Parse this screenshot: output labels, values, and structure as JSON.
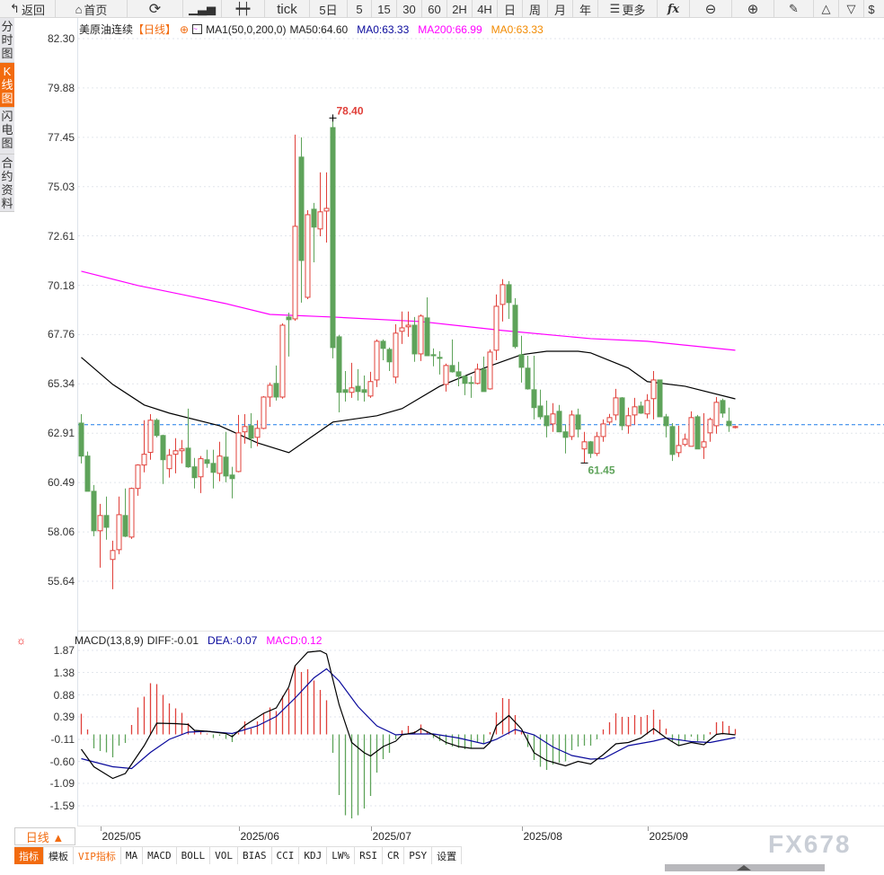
{
  "toolbar": {
    "back": "返回",
    "home": "首页",
    "tick": "tick",
    "five_day": "5日",
    "periods": [
      "5",
      "15",
      "30",
      "60",
      "2H",
      "4H",
      "日",
      "周",
      "月",
      "年"
    ],
    "more": "更多",
    "fx": "fx",
    "dollar": "$"
  },
  "sidebar": [
    "分时图",
    "K线图",
    "闪电图",
    "合约资料"
  ],
  "legend": {
    "name": "美原油连续",
    "period": "【日线】",
    "ma_set": "MA1(50,0,200,0)",
    "ma50": "MA50:64.60",
    "ma0_a": "MA0:63.33",
    "ma200": "MA200:66.99",
    "ma0_b": "MA0:63.33"
  },
  "macd_legend": {
    "name": "MACD(13,8,9)",
    "diff": "DIFF:-0.01",
    "dea": "DEA:-0.07",
    "macd": "MACD:0.12"
  },
  "colors": {
    "up": "#e0403a",
    "down": "#5ea35a",
    "ma50": "#000000",
    "ma200": "#ff00ff",
    "last": "#1e7be8",
    "dea": "#0a0a9c",
    "accent": "#f26b0f"
  },
  "chart_data": [
    {
      "type": "candlestick",
      "price_ticks": [
        "82.30",
        "79.88",
        "77.45",
        "75.03",
        "72.61",
        "70.18",
        "67.76",
        "65.34",
        "62.91",
        "60.49",
        "58.06",
        "55.64"
      ],
      "ylim": [
        55.64,
        82.3
      ],
      "last_price": 63.33,
      "high_label": "78.40",
      "high_index": 40,
      "low_label": "61.45",
      "low_index": 80,
      "month_ticks": [
        {
          "label": "2025/05",
          "index": 3
        },
        {
          "label": "2025/06",
          "index": 25
        },
        {
          "label": "2025/07",
          "index": 46
        },
        {
          "label": "2025/08",
          "index": 70
        },
        {
          "label": "2025/09",
          "index": 90
        }
      ],
      "ohlc": [
        [
          63.41,
          63.85,
          61.43,
          61.79
        ],
        [
          61.79,
          62.01,
          60.06,
          60.06
        ],
        [
          60.06,
          60.37,
          57.85,
          58.12
        ],
        [
          58.12,
          59.44,
          56.31,
          58.87
        ],
        [
          58.87,
          59.8,
          57.68,
          58.29
        ],
        [
          56.71,
          57.63,
          55.25,
          57.15
        ],
        [
          57.19,
          59.8,
          56.97,
          58.91
        ],
        [
          58.87,
          60.2,
          57.81,
          57.85
        ],
        [
          57.81,
          60.24,
          57.72,
          60.2
        ],
        [
          60.2,
          61.39,
          59.84,
          61.35
        ],
        [
          61.35,
          63.55,
          60.99,
          61.88
        ],
        [
          61.97,
          63.85,
          61.61,
          63.55
        ],
        [
          63.55,
          63.64,
          62.71,
          62.8
        ],
        [
          62.8,
          62.84,
          60.42,
          61.61
        ],
        [
          61.17,
          62.14,
          60.73,
          61.83
        ],
        [
          61.88,
          62.67,
          60.94,
          62.05
        ],
        [
          62.05,
          62.58,
          61.43,
          62.14
        ],
        [
          62.18,
          64.12,
          61.21,
          61.26
        ],
        [
          61.26,
          61.7,
          60.2,
          60.73
        ],
        [
          60.77,
          61.79,
          59.97,
          61.66
        ],
        [
          61.61,
          62.1,
          61.21,
          61.43
        ],
        [
          61.43,
          62.1,
          60.2,
          60.99
        ],
        [
          60.94,
          62.49,
          60.55,
          61.79
        ],
        [
          61.74,
          62.98,
          60.5,
          60.81
        ],
        [
          60.86,
          61.26,
          59.71,
          60.68
        ],
        [
          61.03,
          63.81,
          60.99,
          62.93
        ],
        [
          62.98,
          63.85,
          62.4,
          63.24
        ],
        [
          63.28,
          63.9,
          62.18,
          62.67
        ],
        [
          62.71,
          63.55,
          62.27,
          63.15
        ],
        [
          63.15,
          64.74,
          63.11,
          64.69
        ],
        [
          64.69,
          65.4,
          64.21,
          65.27
        ],
        [
          65.36,
          66.24,
          64.52,
          64.69
        ],
        [
          64.69,
          68.31,
          64.61,
          68.22
        ],
        [
          68.62,
          68.84,
          66.68,
          68.49
        ],
        [
          68.53,
          77.58,
          68.44,
          73.08
        ],
        [
          76.48,
          77.45,
          69.33,
          71.4
        ],
        [
          69.59,
          73.87,
          69.5,
          73.65
        ],
        [
          73.92,
          74.23,
          71.31,
          73.04
        ],
        [
          72.95,
          75.73,
          72.59,
          73.79
        ],
        [
          73.83,
          75.73,
          72.28,
          73.96
        ],
        [
          77.93,
          78.4,
          66.59,
          67.12
        ],
        [
          67.65,
          67.74,
          63.94,
          64.92
        ],
        [
          65.05,
          65.97,
          64.47,
          64.92
        ],
        [
          64.92,
          66.37,
          64.65,
          65.14
        ],
        [
          65.22,
          66.06,
          64.52,
          64.96
        ],
        [
          65.05,
          65.75,
          64.47,
          64.92
        ],
        [
          64.74,
          65.93,
          64.65,
          65.45
        ],
        [
          65.53,
          67.52,
          65.18,
          67.43
        ],
        [
          67.43,
          67.52,
          66.5,
          67.08
        ],
        [
          67.03,
          67.12,
          65.97,
          66.42
        ],
        [
          65.67,
          68.27,
          65.36,
          67.83
        ],
        [
          67.92,
          68.89,
          67.3,
          68.09
        ],
        [
          68.14,
          68.89,
          67.65,
          68.22
        ],
        [
          68.22,
          68.62,
          66.42,
          66.81
        ],
        [
          66.81,
          68.75,
          66.46,
          68.67
        ],
        [
          68.58,
          69.59,
          66.72,
          66.72
        ],
        [
          66.77,
          67.08,
          66.2,
          66.72
        ],
        [
          66.64,
          66.94,
          65.8,
          66.59
        ],
        [
          65.31,
          66.33,
          64.96,
          66.24
        ],
        [
          66.24,
          67.52,
          65.89,
          65.93
        ],
        [
          65.93,
          66.42,
          65.22,
          65.71
        ],
        [
          65.71,
          65.75,
          64.78,
          65.36
        ],
        [
          65.4,
          65.71,
          64.65,
          65.36
        ],
        [
          65.36,
          66.33,
          65.31,
          66.06
        ],
        [
          66.06,
          66.68,
          64.96,
          64.96
        ],
        [
          65.09,
          67.03,
          65.05,
          66.9
        ],
        [
          66.99,
          69.73,
          66.5,
          69.15
        ],
        [
          69.24,
          70.48,
          68.4,
          70.21
        ],
        [
          70.21,
          70.39,
          68.53,
          69.33
        ],
        [
          69.2,
          69.55,
          67.08,
          67.17
        ],
        [
          66.77,
          67.7,
          65.4,
          66.15
        ],
        [
          66.11,
          66.72,
          65.05,
          65.09
        ],
        [
          65.05,
          66.72,
          63.59,
          64.17
        ],
        [
          64.25,
          65.05,
          63.59,
          63.72
        ],
        [
          63.77,
          64.52,
          62.71,
          63.28
        ],
        [
          63.37,
          64.39,
          62.98,
          63.86
        ],
        [
          63.99,
          64.3,
          62.98,
          62.98
        ],
        [
          62.98,
          63.33,
          61.92,
          62.71
        ],
        [
          62.75,
          64.03,
          62.58,
          63.81
        ],
        [
          63.81,
          64.12,
          62.71,
          63.11
        ],
        [
          62.14,
          62.98,
          61.45,
          62.49
        ],
        [
          62.49,
          62.53,
          61.7,
          61.92
        ],
        [
          61.92,
          62.98,
          61.79,
          62.75
        ],
        [
          62.75,
          63.59,
          62.49,
          63.37
        ],
        [
          63.46,
          63.86,
          63.33,
          63.68
        ],
        [
          63.81,
          65.09,
          63.55,
          64.65
        ],
        [
          64.65,
          64.69,
          63.06,
          63.28
        ],
        [
          63.28,
          64.17,
          62.89,
          63.77
        ],
        [
          63.81,
          64.65,
          63.33,
          64.21
        ],
        [
          64.25,
          64.47,
          63.86,
          63.9
        ],
        [
          63.86,
          64.83,
          63.64,
          64.52
        ],
        [
          64.61,
          65.97,
          63.59,
          65.53
        ],
        [
          65.53,
          65.53,
          63.72,
          63.72
        ],
        [
          63.72,
          63.86,
          62.71,
          63.28
        ],
        [
          63.24,
          63.41,
          61.55,
          61.87
        ],
        [
          61.96,
          63.28,
          61.74,
          62.31
        ],
        [
          62.36,
          62.89,
          62.27,
          62.62
        ],
        [
          62.27,
          63.99,
          62.27,
          63.68
        ],
        [
          63.72,
          63.81,
          62.14,
          62.14
        ],
        [
          62.22,
          63.9,
          61.65,
          62.49
        ],
        [
          62.93,
          63.68,
          62.49,
          63.59
        ],
        [
          63.28,
          64.69,
          62.89,
          64.43
        ],
        [
          64.52,
          64.61,
          63.68,
          63.9
        ],
        [
          63.5,
          64.17,
          62.98,
          63.28
        ],
        [
          63.19,
          63.28,
          63.15,
          63.24
        ]
      ],
      "ma50": [
        [
          0,
          66.64
        ],
        [
          5,
          65.31
        ],
        [
          10,
          64.3
        ],
        [
          14,
          63.9
        ],
        [
          22,
          63.28
        ],
        [
          28,
          62.44
        ],
        [
          33,
          61.96
        ],
        [
          40,
          63.46
        ],
        [
          47,
          63.77
        ],
        [
          51,
          64.12
        ],
        [
          57,
          65.22
        ],
        [
          64,
          66.11
        ],
        [
          70,
          66.77
        ],
        [
          74,
          66.94
        ],
        [
          79,
          66.94
        ],
        [
          81,
          66.86
        ],
        [
          87,
          66.11
        ],
        [
          90,
          65.45
        ],
        [
          96,
          65.22
        ],
        [
          104,
          64.6
        ]
      ],
      "ma200": [
        [
          0,
          70.87
        ],
        [
          9,
          70.17
        ],
        [
          16,
          69.73
        ],
        [
          23,
          69.28
        ],
        [
          30,
          68.75
        ],
        [
          40,
          68.62
        ],
        [
          54,
          68.4
        ],
        [
          67,
          67.96
        ],
        [
          81,
          67.56
        ],
        [
          90,
          67.43
        ],
        [
          104,
          66.99
        ]
      ]
    },
    {
      "type": "macd",
      "ticks": [
        "1.87",
        "1.38",
        "0.88",
        "0.39",
        "-0.11",
        "-0.60",
        "-1.09",
        "-1.59"
      ],
      "ylim": [
        -1.59,
        1.87
      ],
      "hist": [
        0.46,
        0.11,
        -0.31,
        -0.37,
        -0.4,
        -0.51,
        -0.25,
        -0.19,
        0.21,
        0.6,
        0.84,
        1.14,
        1.12,
        0.88,
        0.69,
        0.58,
        0.48,
        0.25,
        0.09,
        0.07,
        0.02,
        -0.08,
        -0.03,
        -0.1,
        -0.17,
        0.04,
        0.29,
        0.13,
        0.29,
        0.47,
        0.6,
        0.52,
        0.86,
        1.02,
        1.53,
        1.39,
        1.45,
        1.2,
        0.99,
        0.76,
        -0.41,
        -1.35,
        -1.8,
        -1.87,
        -1.8,
        -1.65,
        -1.37,
        -0.85,
        -0.55,
        -0.41,
        -0.11,
        0.09,
        0.19,
        0.07,
        0.22,
        0.07,
        -0.08,
        -0.15,
        -0.23,
        -0.27,
        -0.3,
        -0.33,
        -0.31,
        -0.18,
        -0.21,
        0.05,
        0.49,
        0.81,
        0.79,
        0.43,
        0.07,
        -0.28,
        -0.57,
        -0.72,
        -0.79,
        -0.67,
        -0.63,
        -0.6,
        -0.35,
        -0.27,
        -0.25,
        -0.25,
        -0.11,
        0.11,
        0.27,
        0.47,
        0.39,
        0.39,
        0.43,
        0.39,
        0.43,
        0.55,
        0.33,
        0.13,
        -0.15,
        -0.25,
        -0.15,
        -0.05,
        -0.15,
        -0.13,
        0.05,
        0.27,
        0.29,
        0.19,
        0.12
      ],
      "diff": [
        [
          0,
          -0.33
        ],
        [
          2,
          -0.72
        ],
        [
          5,
          -0.98
        ],
        [
          7,
          -0.87
        ],
        [
          10,
          -0.25
        ],
        [
          12,
          0.25
        ],
        [
          15,
          0.24
        ],
        [
          17,
          0.22
        ],
        [
          18,
          0.09
        ],
        [
          20,
          0.07
        ],
        [
          23,
          0.02
        ],
        [
          24,
          -0.05
        ],
        [
          26,
          0.2
        ],
        [
          29,
          0.47
        ],
        [
          31,
          0.59
        ],
        [
          33,
          1.06
        ],
        [
          34,
          1.53
        ],
        [
          36,
          1.83
        ],
        [
          38,
          1.86
        ],
        [
          39,
          1.79
        ],
        [
          41,
          0.66
        ],
        [
          43,
          -0.18
        ],
        [
          45,
          -0.41
        ],
        [
          46,
          -0.48
        ],
        [
          48,
          -0.27
        ],
        [
          50,
          -0.15
        ],
        [
          51,
          -0.01
        ],
        [
          53,
          0.04
        ],
        [
          54,
          0.13
        ],
        [
          56,
          -0.01
        ],
        [
          58,
          -0.18
        ],
        [
          60,
          -0.27
        ],
        [
          62,
          -0.31
        ],
        [
          64,
          -0.31
        ],
        [
          65,
          -0.18
        ],
        [
          66,
          0.19
        ],
        [
          68,
          0.42
        ],
        [
          70,
          0.12
        ],
        [
          72,
          -0.41
        ],
        [
          74,
          -0.58
        ],
        [
          76,
          -0.66
        ],
        [
          77,
          -0.7
        ],
        [
          79,
          -0.6
        ],
        [
          81,
          -0.66
        ],
        [
          83,
          -0.45
        ],
        [
          85,
          -0.21
        ],
        [
          87,
          -0.18
        ],
        [
          89,
          -0.08
        ],
        [
          91,
          0.13
        ],
        [
          93,
          -0.08
        ],
        [
          95,
          -0.25
        ],
        [
          97,
          -0.18
        ],
        [
          99,
          -0.23
        ],
        [
          101,
          0.0
        ],
        [
          102,
          0.02
        ],
        [
          104,
          -0.01
        ]
      ],
      "dea": [
        [
          0,
          -0.54
        ],
        [
          5,
          -0.72
        ],
        [
          8,
          -0.76
        ],
        [
          11,
          -0.4
        ],
        [
          14,
          -0.11
        ],
        [
          17,
          0.05
        ],
        [
          20,
          0.07
        ],
        [
          24,
          0.02
        ],
        [
          28,
          0.19
        ],
        [
          31,
          0.4
        ],
        [
          34,
          0.81
        ],
        [
          37,
          1.26
        ],
        [
          39,
          1.46
        ],
        [
          41,
          1.19
        ],
        [
          44,
          0.62
        ],
        [
          47,
          0.19
        ],
        [
          50,
          -0.01
        ],
        [
          52,
          0.01
        ],
        [
          56,
          0.01
        ],
        [
          60,
          -0.08
        ],
        [
          64,
          -0.21
        ],
        [
          66,
          -0.11
        ],
        [
          69,
          0.11
        ],
        [
          72,
          -0.01
        ],
        [
          75,
          -0.28
        ],
        [
          78,
          -0.47
        ],
        [
          81,
          -0.55
        ],
        [
          83,
          -0.54
        ],
        [
          87,
          -0.25
        ],
        [
          91,
          -0.15
        ],
        [
          93,
          -0.08
        ],
        [
          97,
          -0.16
        ],
        [
          100,
          -0.18
        ],
        [
          104,
          -0.07
        ]
      ]
    }
  ],
  "bottom": {
    "period_button": "日线 ▲",
    "tabs": [
      "指标",
      "模板",
      "VIP指标",
      "MA",
      "MACD",
      "BOLL",
      "VOL",
      "BIAS",
      "CCI",
      "KDJ",
      "LW%",
      "RSI",
      "CR",
      "PSY",
      "设置"
    ],
    "watermark": "FX678"
  }
}
